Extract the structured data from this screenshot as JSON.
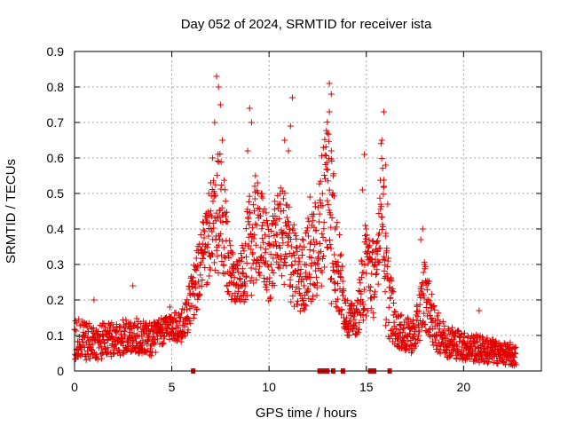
{
  "chart_data": {
    "type": "scatter",
    "title": "Day 052 of 2024, SRMTID for receiver ista",
    "xlabel": "GPS time / hours",
    "ylabel": "SRMTID / TECUs",
    "xlim": [
      0,
      24
    ],
    "ylim": [
      0,
      0.9
    ],
    "x_ticks": [
      0,
      5,
      10,
      15,
      20
    ],
    "x_tick_labels": [
      "0",
      "5",
      "10",
      "15",
      "20"
    ],
    "y_ticks": [
      0,
      0.1,
      0.2,
      0.3,
      0.4,
      0.5,
      0.6,
      0.7,
      0.8,
      0.9
    ],
    "y_tick_labels": [
      "0",
      "0.1",
      "0.2",
      "0.3",
      "0.4",
      "0.5",
      "0.6",
      "0.7",
      "0.8",
      "0.9"
    ],
    "grid": true,
    "marker": "+",
    "color": "#e00000",
    "series": [
      {
        "name": "SRMTID",
        "envelope": [
          {
            "x": 0.0,
            "y": 0.09,
            "spread": 0.06
          },
          {
            "x": 1.0,
            "y": 0.08,
            "spread": 0.05
          },
          {
            "x": 2.0,
            "y": 0.09,
            "spread": 0.05
          },
          {
            "x": 3.0,
            "y": 0.1,
            "spread": 0.05
          },
          {
            "x": 4.0,
            "y": 0.09,
            "spread": 0.05
          },
          {
            "x": 4.5,
            "y": 0.11,
            "spread": 0.04
          },
          {
            "x": 5.0,
            "y": 0.13,
            "spread": 0.04
          },
          {
            "x": 5.5,
            "y": 0.12,
            "spread": 0.05
          },
          {
            "x": 6.0,
            "y": 0.2,
            "spread": 0.07
          },
          {
            "x": 6.5,
            "y": 0.3,
            "spread": 0.1
          },
          {
            "x": 7.0,
            "y": 0.38,
            "spread": 0.12
          },
          {
            "x": 7.5,
            "y": 0.45,
            "spread": 0.2
          },
          {
            "x": 8.0,
            "y": 0.28,
            "spread": 0.08
          },
          {
            "x": 8.5,
            "y": 0.25,
            "spread": 0.06
          },
          {
            "x": 9.0,
            "y": 0.35,
            "spread": 0.15
          },
          {
            "x": 9.5,
            "y": 0.4,
            "spread": 0.14
          },
          {
            "x": 10.0,
            "y": 0.3,
            "spread": 0.12
          },
          {
            "x": 10.5,
            "y": 0.4,
            "spread": 0.12
          },
          {
            "x": 11.0,
            "y": 0.35,
            "spread": 0.15
          },
          {
            "x": 11.5,
            "y": 0.25,
            "spread": 0.1
          },
          {
            "x": 12.0,
            "y": 0.3,
            "spread": 0.12
          },
          {
            "x": 12.5,
            "y": 0.35,
            "spread": 0.15
          },
          {
            "x": 13.0,
            "y": 0.55,
            "spread": 0.25
          },
          {
            "x": 13.5,
            "y": 0.3,
            "spread": 0.15
          },
          {
            "x": 14.0,
            "y": 0.15,
            "spread": 0.05
          },
          {
            "x": 14.5,
            "y": 0.14,
            "spread": 0.04
          },
          {
            "x": 15.0,
            "y": 0.3,
            "spread": 0.15
          },
          {
            "x": 15.5,
            "y": 0.25,
            "spread": 0.1
          },
          {
            "x": 15.8,
            "y": 0.55,
            "spread": 0.15
          },
          {
            "x": 16.0,
            "y": 0.25,
            "spread": 0.15
          },
          {
            "x": 16.5,
            "y": 0.12,
            "spread": 0.05
          },
          {
            "x": 17.0,
            "y": 0.1,
            "spread": 0.05
          },
          {
            "x": 17.5,
            "y": 0.1,
            "spread": 0.05
          },
          {
            "x": 18.0,
            "y": 0.22,
            "spread": 0.1
          },
          {
            "x": 18.5,
            "y": 0.12,
            "spread": 0.06
          },
          {
            "x": 19.0,
            "y": 0.09,
            "spread": 0.05
          },
          {
            "x": 20.0,
            "y": 0.07,
            "spread": 0.04
          },
          {
            "x": 21.0,
            "y": 0.06,
            "spread": 0.04
          },
          {
            "x": 22.0,
            "y": 0.05,
            "spread": 0.03
          },
          {
            "x": 22.7,
            "y": 0.04,
            "spread": 0.03
          }
        ],
        "points": [
          [
            7.3,
            0.83
          ],
          [
            7.4,
            0.8
          ],
          [
            7.5,
            0.75
          ],
          [
            7.2,
            0.7
          ],
          [
            7.6,
            0.65
          ],
          [
            7.1,
            0.6
          ],
          [
            7.0,
            0.53
          ],
          [
            6.9,
            0.5
          ],
          [
            6.6,
            0.42
          ],
          [
            6.3,
            0.29
          ],
          [
            9.0,
            0.74
          ],
          [
            9.1,
            0.7
          ],
          [
            8.9,
            0.62
          ],
          [
            9.3,
            0.55
          ],
          [
            9.6,
            0.5
          ],
          [
            10.8,
            0.65
          ],
          [
            11.0,
            0.62
          ],
          [
            11.2,
            0.77
          ],
          [
            11.1,
            0.69
          ],
          [
            10.6,
            0.45
          ],
          [
            12.1,
            0.49
          ],
          [
            12.0,
            0.43
          ],
          [
            12.3,
            0.37
          ],
          [
            12.4,
            0.3
          ],
          [
            13.1,
            0.81
          ],
          [
            13.2,
            0.78
          ],
          [
            13.1,
            0.73
          ],
          [
            13.0,
            0.67
          ],
          [
            13.2,
            0.62
          ],
          [
            13.3,
            0.55
          ],
          [
            13.0,
            0.48
          ],
          [
            13.4,
            0.4
          ],
          [
            13.2,
            0.19
          ],
          [
            14.9,
            0.61
          ],
          [
            14.8,
            0.51
          ],
          [
            15.0,
            0.4
          ],
          [
            15.1,
            0.35
          ],
          [
            15.9,
            0.73
          ],
          [
            15.8,
            0.65
          ],
          [
            16.0,
            0.58
          ],
          [
            15.9,
            0.52
          ],
          [
            16.1,
            0.47
          ],
          [
            16.0,
            0.38
          ],
          [
            17.9,
            0.4
          ],
          [
            17.8,
            0.37
          ],
          [
            18.0,
            0.3
          ],
          [
            18.1,
            0.25
          ],
          [
            1.0,
            0.2
          ],
          [
            3.0,
            0.24
          ],
          [
            4.9,
            0.18
          ],
          [
            20.8,
            0.17
          ],
          [
            22.4,
            0.08
          ]
        ],
        "gap_markers_x": [
          6.1,
          12.6,
          12.8,
          13.0,
          13.3,
          13.8,
          15.2,
          15.4,
          16.2
        ]
      }
    ]
  }
}
